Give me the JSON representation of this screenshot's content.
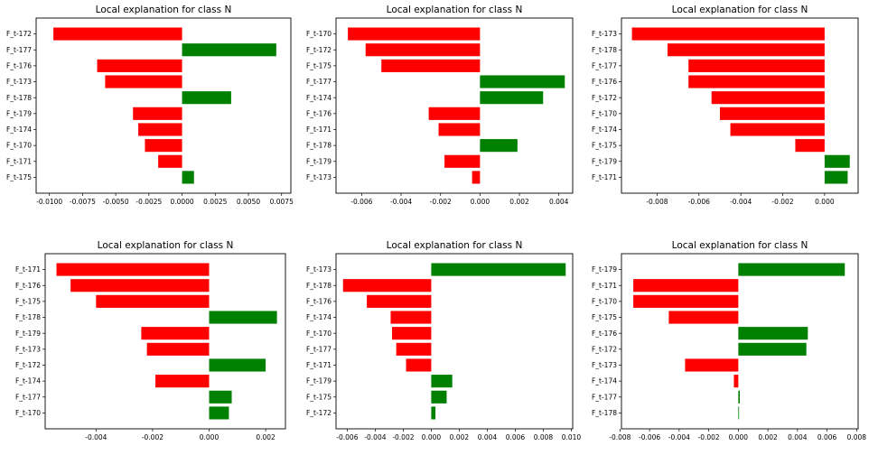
{
  "chart_data": [
    {
      "type": "bar",
      "orientation": "horizontal",
      "title": "Local explanation for class N",
      "categories": [
        "F_t-172",
        "F_t-177",
        "F_t-176",
        "F_t-173",
        "F_t-178",
        "F_t-179",
        "F_t-174",
        "F_t-170",
        "F_t-171",
        "F_t-175"
      ],
      "values": [
        -0.0097,
        0.0071,
        -0.0064,
        -0.0058,
        0.0037,
        -0.0037,
        -0.0033,
        -0.0028,
        -0.0018,
        0.0009
      ],
      "xlim": [
        -0.011,
        0.0082
      ],
      "ticks": [
        -0.01,
        -0.0075,
        -0.005,
        -0.0025,
        0.0,
        0.0025,
        0.005,
        0.0075
      ],
      "tick_labels": [
        "-0.0100",
        "-0.0075",
        "-0.0050",
        "-0.0025",
        "0.0000",
        "0.0025",
        "0.0050",
        "0.0075"
      ]
    },
    {
      "type": "bar",
      "orientation": "horizontal",
      "title": "Local explanation for class N",
      "categories": [
        "F_t-170",
        "F_t-172",
        "F_t-175",
        "F_t-177",
        "F_t-174",
        "F_t-176",
        "F_t-171",
        "F_t-178",
        "F_t-179",
        "F_t-173"
      ],
      "values": [
        -0.0067,
        -0.0058,
        -0.005,
        0.0043,
        0.0032,
        -0.0026,
        -0.0021,
        0.0019,
        -0.0018,
        -0.0004
      ],
      "xlim": [
        -0.0073,
        0.0047
      ],
      "ticks": [
        -0.006,
        -0.004,
        -0.002,
        0.0,
        0.002,
        0.004
      ],
      "tick_labels": [
        "-0.006",
        "-0.004",
        "-0.002",
        "0.000",
        "0.002",
        "0.004"
      ]
    },
    {
      "type": "bar",
      "orientation": "horizontal",
      "title": "Local explanation for class N",
      "categories": [
        "F_t-173",
        "F_t-178",
        "F_t-177",
        "F_t-176",
        "F_t-172",
        "F_t-170",
        "F_t-174",
        "F_t-175",
        "F_t-179",
        "F_t-171"
      ],
      "values": [
        -0.0092,
        -0.0075,
        -0.0065,
        -0.0065,
        -0.0054,
        -0.005,
        -0.0045,
        -0.0014,
        0.0012,
        0.0011
      ],
      "xlim": [
        -0.0097,
        0.0016
      ],
      "ticks": [
        -0.008,
        -0.006,
        -0.004,
        -0.002,
        0.0
      ],
      "tick_labels": [
        "-0.008",
        "-0.006",
        "-0.004",
        "-0.002",
        "0.000"
      ]
    },
    {
      "type": "bar",
      "orientation": "horizontal",
      "title": "Local explanation for class N",
      "categories": [
        "F_t-171",
        "F_t-176",
        "F_t-175",
        "F_t-178",
        "F_t-179",
        "F_t-173",
        "F_t-172",
        "F_t-174",
        "F_t-177",
        "F_t-170"
      ],
      "values": [
        -0.0054,
        -0.0049,
        -0.004,
        0.0024,
        -0.0024,
        -0.0022,
        0.002,
        -0.0019,
        0.0008,
        0.0007
      ],
      "xlim": [
        -0.0058,
        0.0027
      ],
      "ticks": [
        -0.004,
        -0.002,
        0.0,
        0.002
      ],
      "tick_labels": [
        "-0.004",
        "-0.002",
        "0.000",
        "0.002"
      ]
    },
    {
      "type": "bar",
      "orientation": "horizontal",
      "title": "Local explanation for class N",
      "categories": [
        "F_t-173",
        "F_t-178",
        "F_t-176",
        "F_t-174",
        "F_t-170",
        "F_t-177",
        "F_t-171",
        "F_t-179",
        "F_t-175",
        "F_t-172"
      ],
      "values": [
        0.0096,
        -0.0063,
        -0.0046,
        -0.0029,
        -0.0028,
        -0.0025,
        -0.0018,
        0.0015,
        0.0011,
        0.0003
      ],
      "xlim": [
        -0.0068,
        0.0101
      ],
      "ticks": [
        -0.006,
        -0.004,
        -0.002,
        0.0,
        0.002,
        0.004,
        0.006,
        0.008,
        0.01
      ],
      "tick_labels": [
        "-0.006",
        "-0.004",
        "-0.002",
        "0.000",
        "0.002",
        "0.004",
        "0.006",
        "0.008",
        "0.010"
      ]
    },
    {
      "type": "bar",
      "orientation": "horizontal",
      "title": "Local explanation for class N",
      "categories": [
        "F_t-179",
        "F_t-171",
        "F_t-170",
        "F_t-175",
        "F_t-176",
        "F_t-172",
        "F_t-173",
        "F_t-174",
        "F_t-177",
        "F_t-178"
      ],
      "values": [
        0.0072,
        -0.0071,
        -0.0071,
        -0.0047,
        0.0047,
        0.0046,
        -0.0036,
        -0.0003,
        0.0001,
        0.0
      ],
      "xlim": [
        -0.0079,
        0.0081
      ],
      "ticks": [
        -0.008,
        -0.006,
        -0.004,
        -0.002,
        0.0,
        0.002,
        0.004,
        0.006,
        0.008
      ],
      "tick_labels": [
        "-0.008",
        "-0.006",
        "-0.004",
        "-0.002",
        "0.000",
        "0.002",
        "0.004",
        "0.006",
        "0.008"
      ]
    }
  ],
  "colors": {
    "positive": "#008000",
    "negative": "#ff0000"
  }
}
